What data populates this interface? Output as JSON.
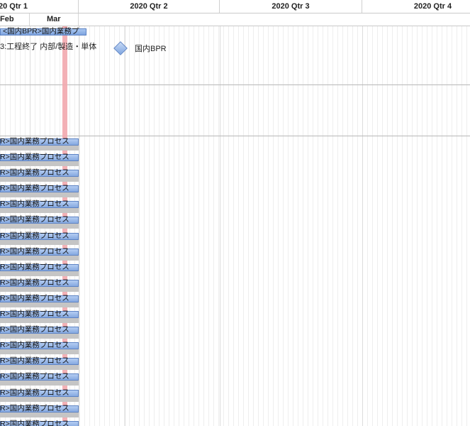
{
  "timeline": {
    "quarters": [
      "20 Qtr 1",
      "2020 Qtr 2",
      "2020 Qtr 3",
      "2020 Qtr 4"
    ],
    "months": [
      "Feb",
      "Mar"
    ]
  },
  "summary_task": {
    "label": "<国内BPR>国内業務プ"
  },
  "task": {
    "label": "3:工程終了 内部/製造・単体"
  },
  "milestone": {
    "label": "国内BPR"
  },
  "bars": [
    "R>国内業務プロセス",
    "R>国内業務プロセス",
    "R>国内業務プロセス",
    "R>国内業務プロセス",
    "R>国内業務プロセス",
    "R>国内業務プロセス",
    "R>国内業務プロセス",
    "R>国内業務プロセス",
    "R>国内業務プロセス",
    "R>国内業務プロセス",
    "R>国内業務プロセス",
    "R>国内業務プロセス",
    "R>国内業務プロセス",
    "R>国内業務プロセス",
    "R>国内業務プロセス",
    "R>国内業務プロセス",
    "R>国内業務プロセス",
    "R>国内業務プロセス",
    "R>国内業務プロセス"
  ],
  "colors": {
    "bar_fill": "#86a9e1",
    "bar_border": "#5d83c4",
    "today_line": "#f2a8ae"
  }
}
